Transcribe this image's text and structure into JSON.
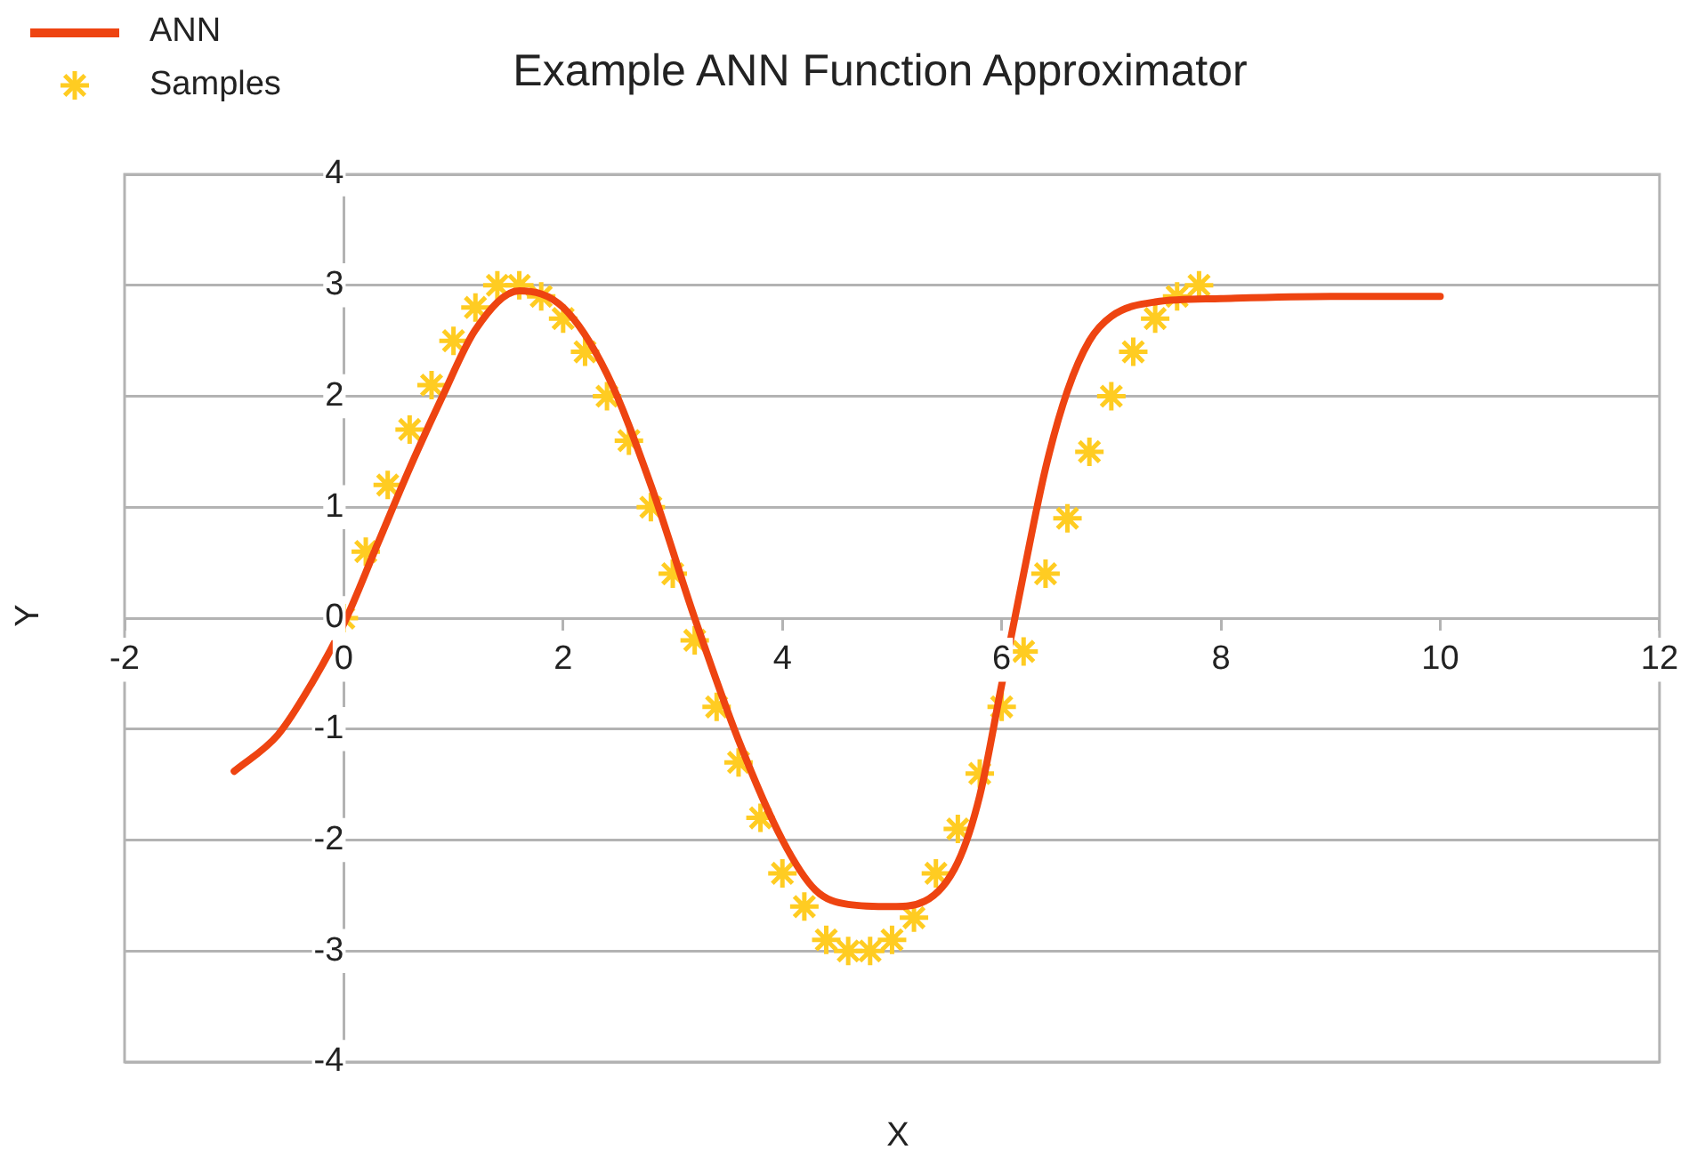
{
  "chart_data": {
    "type": "line",
    "title": "Example ANN Function Approximator",
    "xlabel": "X",
    "ylabel": "Y",
    "xlim": [
      -2,
      12
    ],
    "xticks": [
      -2,
      0,
      2,
      4,
      6,
      8,
      10,
      12
    ],
    "ylim": [
      -4,
      4
    ],
    "yticks": [
      -4,
      -3,
      -2,
      -1,
      0,
      1,
      2,
      3,
      4
    ],
    "grid": "y",
    "legend": "top left",
    "series": [
      {
        "name": "ANN",
        "color": "#ee4411",
        "marker": "none",
        "x": [
          -1,
          -0.6,
          -0.3,
          0,
          0.3,
          0.6,
          0.9,
          1.2,
          1.6,
          2.0,
          2.4,
          2.8,
          3.2,
          3.6,
          4.0,
          4.3,
          4.6,
          5.0,
          5.3,
          5.6,
          5.8,
          6.0,
          6.2,
          6.4,
          6.6,
          6.8,
          7.0,
          7.4,
          8,
          9,
          10
        ],
        "values": [
          -1.38,
          -1.05,
          -0.6,
          -0.05,
          0.65,
          1.35,
          2.0,
          2.6,
          2.95,
          2.8,
          2.2,
          1.2,
          0.0,
          -1.1,
          -2.0,
          -2.45,
          -2.58,
          -2.6,
          -2.55,
          -2.2,
          -1.6,
          -0.6,
          0.4,
          1.35,
          2.05,
          2.5,
          2.72,
          2.85,
          2.88,
          2.9,
          2.9
        ]
      },
      {
        "name": "Samples",
        "type": "scatter",
        "color": "#ffcc22",
        "marker": "cross",
        "x": [
          0,
          0.2,
          0.4,
          0.6,
          0.8,
          1.0,
          1.2,
          1.4,
          1.6,
          1.8,
          2.0,
          2.2,
          2.4,
          2.6,
          2.8,
          3.0,
          3.2,
          3.4,
          3.6,
          3.8,
          4.0,
          4.2,
          4.4,
          4.6,
          4.8,
          5.0,
          5.2,
          5.4,
          5.6,
          5.8,
          6.0,
          6.2,
          6.4,
          6.6,
          6.8,
          7.0,
          7.2,
          7.4,
          7.6,
          7.8
        ],
        "values": [
          0,
          0.6,
          1.2,
          1.7,
          2.1,
          2.5,
          2.8,
          3.0,
          3.0,
          2.9,
          2.7,
          2.4,
          2.0,
          1.6,
          1.0,
          0.4,
          -0.2,
          -0.8,
          -1.3,
          -1.8,
          -2.3,
          -2.6,
          -2.9,
          -3.0,
          -3.0,
          -2.9,
          -2.7,
          -2.3,
          -1.9,
          -1.4,
          -0.8,
          -0.3,
          0.4,
          0.9,
          1.5,
          2.0,
          2.4,
          2.7,
          2.9,
          3.0
        ]
      }
    ]
  }
}
